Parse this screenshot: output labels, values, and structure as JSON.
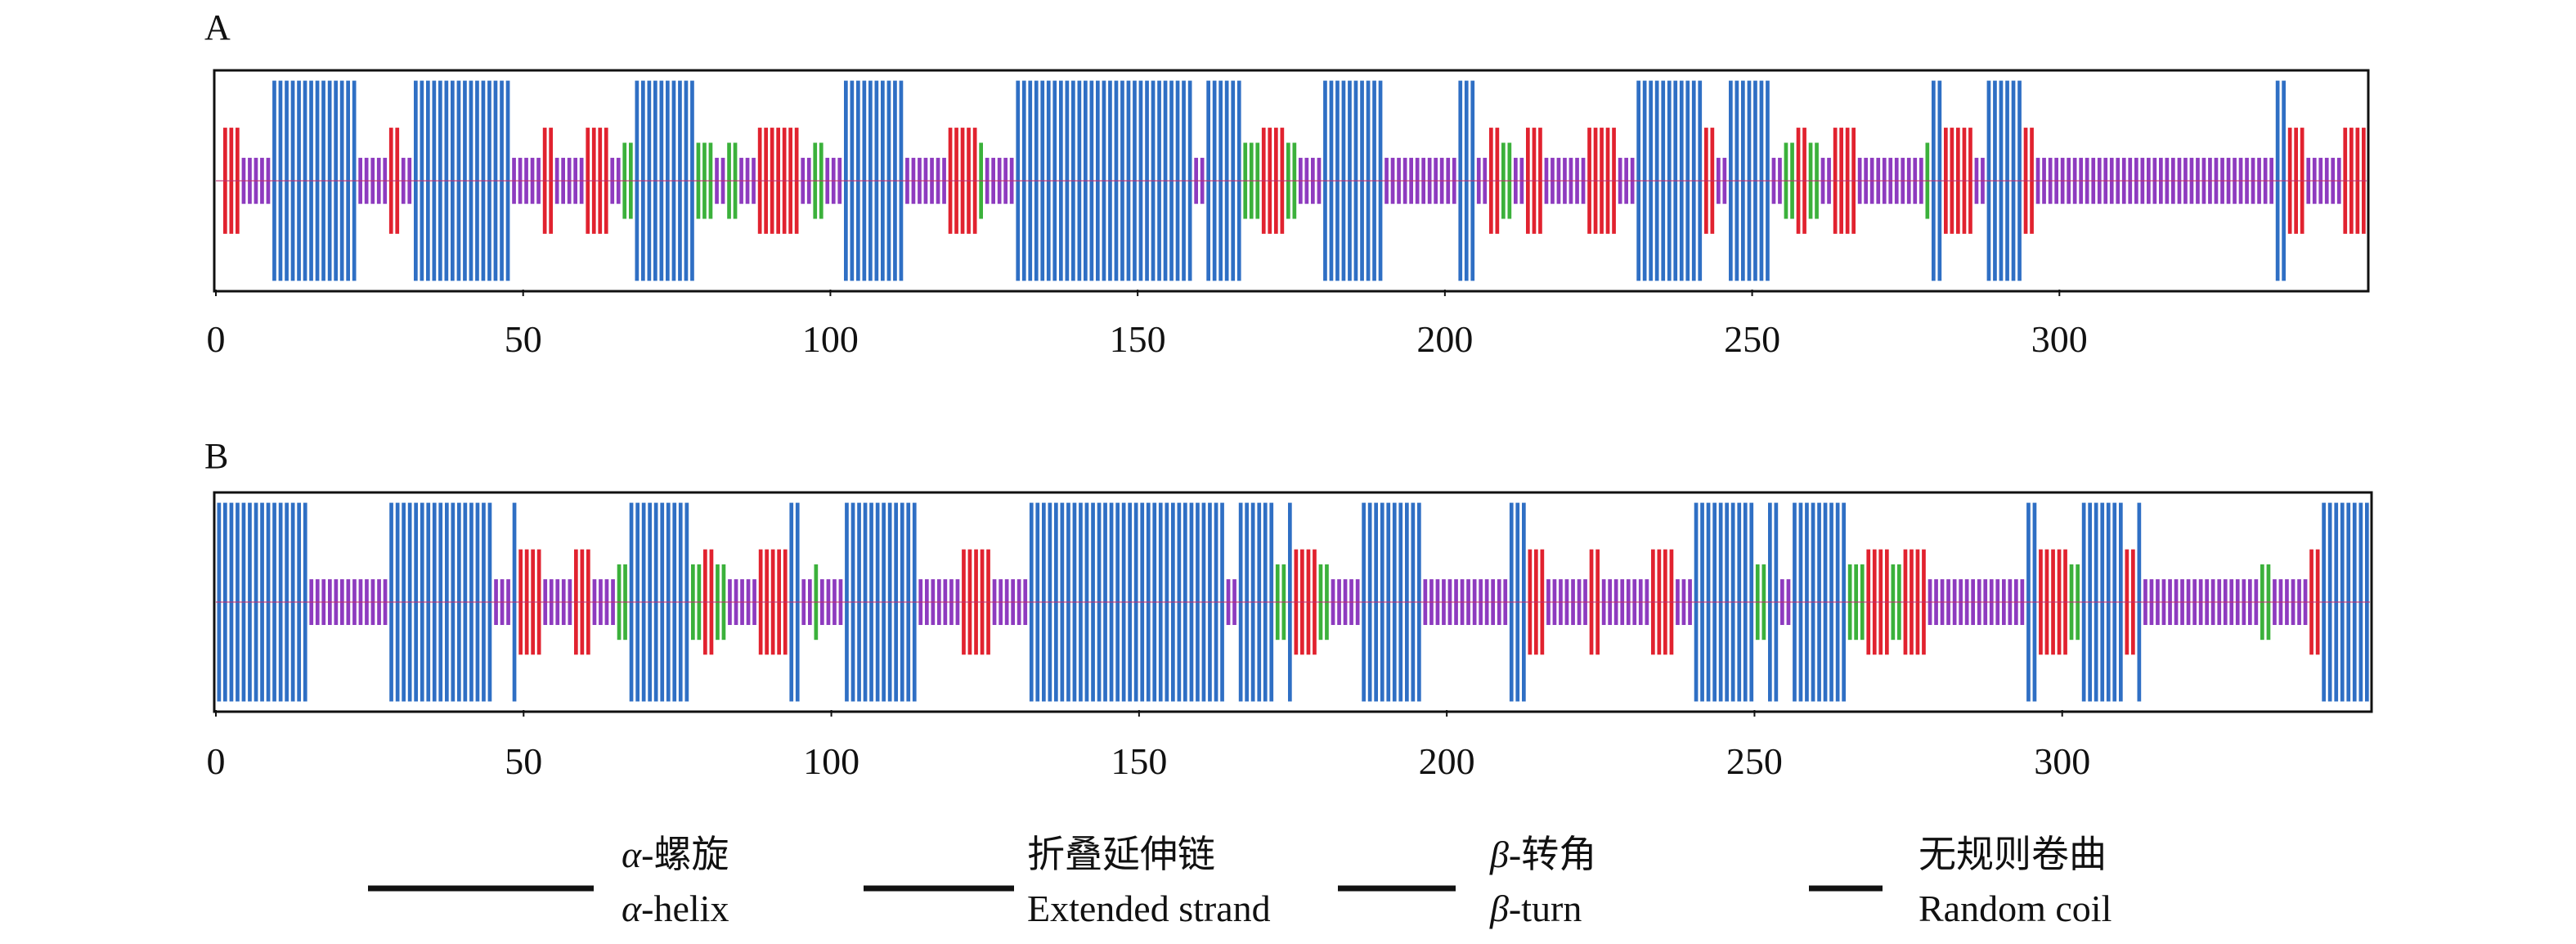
{
  "legend": [
    {
      "key": "helix",
      "zh_symbol": "α",
      "zh_text": "-螺旋",
      "en_symbol": "α",
      "en_text": "-helix",
      "color": "#2f6fc4"
    },
    {
      "key": "strand",
      "zh_symbol": "",
      "zh_text": "折叠延伸链",
      "en_symbol": "",
      "en_text": "Extended strand",
      "color": "#e1222f"
    },
    {
      "key": "turn",
      "zh_symbol": "β",
      "zh_text": "-转角",
      "en_symbol": "β",
      "en_text": "-turn",
      "color": "#3bb13b"
    },
    {
      "key": "coil",
      "zh_symbol": "",
      "zh_text": "无规则卷曲",
      "en_symbol": "",
      "en_text": "Random coil",
      "color": "#8e3bbf"
    }
  ],
  "chart_data": [
    {
      "type": "bar",
      "panel": "A",
      "xlim": [
        0,
        350
      ],
      "xticks": [
        0,
        50,
        100,
        150,
        200,
        250,
        300
      ],
      "xtick_labels": [
        "0",
        "50",
        "100",
        "150",
        "200",
        "250",
        "300"
      ],
      "grid": false,
      "segments": [
        {
          "start": 1,
          "end": 4,
          "type": "strand"
        },
        {
          "start": 4,
          "end": 9,
          "type": "coil"
        },
        {
          "start": 9,
          "end": 23,
          "type": "helix"
        },
        {
          "start": 23,
          "end": 28,
          "type": "coil"
        },
        {
          "start": 28,
          "end": 30,
          "type": "strand"
        },
        {
          "start": 30,
          "end": 32,
          "type": "coil"
        },
        {
          "start": 32,
          "end": 48,
          "type": "helix"
        },
        {
          "start": 48,
          "end": 53,
          "type": "coil"
        },
        {
          "start": 53,
          "end": 55,
          "type": "strand"
        },
        {
          "start": 55,
          "end": 60,
          "type": "coil"
        },
        {
          "start": 60,
          "end": 64,
          "type": "strand"
        },
        {
          "start": 64,
          "end": 66,
          "type": "coil"
        },
        {
          "start": 66,
          "end": 68,
          "type": "turn"
        },
        {
          "start": 68,
          "end": 78,
          "type": "helix"
        },
        {
          "start": 78,
          "end": 81,
          "type": "turn"
        },
        {
          "start": 81,
          "end": 83,
          "type": "coil"
        },
        {
          "start": 83,
          "end": 85,
          "type": "turn"
        },
        {
          "start": 85,
          "end": 88,
          "type": "coil"
        },
        {
          "start": 88,
          "end": 95,
          "type": "strand"
        },
        {
          "start": 95,
          "end": 97,
          "type": "coil"
        },
        {
          "start": 97,
          "end": 99,
          "type": "turn"
        },
        {
          "start": 99,
          "end": 102,
          "type": "coil"
        },
        {
          "start": 102,
          "end": 112,
          "type": "helix"
        },
        {
          "start": 112,
          "end": 119,
          "type": "coil"
        },
        {
          "start": 119,
          "end": 124,
          "type": "strand"
        },
        {
          "start": 124,
          "end": 125,
          "type": "turn"
        },
        {
          "start": 125,
          "end": 130,
          "type": "coil"
        },
        {
          "start": 130,
          "end": 159,
          "type": "helix"
        },
        {
          "start": 159,
          "end": 161,
          "type": "coil"
        },
        {
          "start": 161,
          "end": 167,
          "type": "helix"
        },
        {
          "start": 167,
          "end": 170,
          "type": "turn"
        },
        {
          "start": 170,
          "end": 174,
          "type": "strand"
        },
        {
          "start": 174,
          "end": 176,
          "type": "turn"
        },
        {
          "start": 176,
          "end": 180,
          "type": "coil"
        },
        {
          "start": 180,
          "end": 190,
          "type": "helix"
        },
        {
          "start": 190,
          "end": 202,
          "type": "coil"
        },
        {
          "start": 202,
          "end": 205,
          "type": "helix"
        },
        {
          "start": 205,
          "end": 207,
          "type": "coil"
        },
        {
          "start": 207,
          "end": 209,
          "type": "strand"
        },
        {
          "start": 209,
          "end": 211,
          "type": "turn"
        },
        {
          "start": 211,
          "end": 213,
          "type": "coil"
        },
        {
          "start": 213,
          "end": 216,
          "type": "strand"
        },
        {
          "start": 216,
          "end": 223,
          "type": "coil"
        },
        {
          "start": 223,
          "end": 228,
          "type": "strand"
        },
        {
          "start": 228,
          "end": 231,
          "type": "coil"
        },
        {
          "start": 231,
          "end": 242,
          "type": "helix"
        },
        {
          "start": 242,
          "end": 244,
          "type": "strand"
        },
        {
          "start": 244,
          "end": 246,
          "type": "coil"
        },
        {
          "start": 246,
          "end": 253,
          "type": "helix"
        },
        {
          "start": 253,
          "end": 255,
          "type": "coil"
        },
        {
          "start": 255,
          "end": 257,
          "type": "turn"
        },
        {
          "start": 257,
          "end": 259,
          "type": "strand"
        },
        {
          "start": 259,
          "end": 261,
          "type": "turn"
        },
        {
          "start": 261,
          "end": 263,
          "type": "coil"
        },
        {
          "start": 263,
          "end": 267,
          "type": "strand"
        },
        {
          "start": 267,
          "end": 278,
          "type": "coil"
        },
        {
          "start": 278,
          "end": 279,
          "type": "turn"
        },
        {
          "start": 279,
          "end": 281,
          "type": "helix"
        },
        {
          "start": 281,
          "end": 286,
          "type": "strand"
        },
        {
          "start": 286,
          "end": 288,
          "type": "coil"
        },
        {
          "start": 288,
          "end": 294,
          "type": "helix"
        },
        {
          "start": 294,
          "end": 296,
          "type": "strand"
        },
        {
          "start": 296,
          "end": 335,
          "type": "coil"
        },
        {
          "start": 335,
          "end": 337,
          "type": "helix"
        },
        {
          "start": 337,
          "end": 340,
          "type": "strand"
        },
        {
          "start": 340,
          "end": 346,
          "type": "coil"
        },
        {
          "start": 346,
          "end": 350,
          "type": "strand"
        }
      ]
    },
    {
      "type": "bar",
      "panel": "B",
      "xlim": [
        0,
        350
      ],
      "xticks": [
        0,
        50,
        100,
        150,
        200,
        250,
        300
      ],
      "xtick_labels": [
        "0",
        "50",
        "100",
        "150",
        "200",
        "250",
        "300"
      ],
      "grid": false,
      "segments": [
        {
          "start": 0,
          "end": 15,
          "type": "helix"
        },
        {
          "start": 15,
          "end": 28,
          "type": "coil"
        },
        {
          "start": 28,
          "end": 45,
          "type": "helix"
        },
        {
          "start": 45,
          "end": 48,
          "type": "coil"
        },
        {
          "start": 48,
          "end": 49,
          "type": "helix"
        },
        {
          "start": 49,
          "end": 53,
          "type": "strand"
        },
        {
          "start": 53,
          "end": 58,
          "type": "coil"
        },
        {
          "start": 58,
          "end": 61,
          "type": "strand"
        },
        {
          "start": 61,
          "end": 65,
          "type": "coil"
        },
        {
          "start": 65,
          "end": 67,
          "type": "turn"
        },
        {
          "start": 67,
          "end": 77,
          "type": "helix"
        },
        {
          "start": 77,
          "end": 79,
          "type": "turn"
        },
        {
          "start": 79,
          "end": 81,
          "type": "strand"
        },
        {
          "start": 81,
          "end": 83,
          "type": "turn"
        },
        {
          "start": 83,
          "end": 88,
          "type": "coil"
        },
        {
          "start": 88,
          "end": 93,
          "type": "strand"
        },
        {
          "start": 93,
          "end": 95,
          "type": "helix"
        },
        {
          "start": 95,
          "end": 97,
          "type": "coil"
        },
        {
          "start": 97,
          "end": 98,
          "type": "turn"
        },
        {
          "start": 98,
          "end": 102,
          "type": "coil"
        },
        {
          "start": 102,
          "end": 114,
          "type": "helix"
        },
        {
          "start": 114,
          "end": 121,
          "type": "coil"
        },
        {
          "start": 121,
          "end": 126,
          "type": "strand"
        },
        {
          "start": 126,
          "end": 132,
          "type": "coil"
        },
        {
          "start": 132,
          "end": 164,
          "type": "helix"
        },
        {
          "start": 164,
          "end": 166,
          "type": "coil"
        },
        {
          "start": 166,
          "end": 172,
          "type": "helix"
        },
        {
          "start": 172,
          "end": 174,
          "type": "turn"
        },
        {
          "start": 174,
          "end": 175,
          "type": "helix"
        },
        {
          "start": 175,
          "end": 179,
          "type": "strand"
        },
        {
          "start": 179,
          "end": 181,
          "type": "turn"
        },
        {
          "start": 181,
          "end": 186,
          "type": "coil"
        },
        {
          "start": 186,
          "end": 196,
          "type": "helix"
        },
        {
          "start": 196,
          "end": 210,
          "type": "coil"
        },
        {
          "start": 210,
          "end": 213,
          "type": "helix"
        },
        {
          "start": 213,
          "end": 216,
          "type": "strand"
        },
        {
          "start": 216,
          "end": 223,
          "type": "coil"
        },
        {
          "start": 223,
          "end": 225,
          "type": "strand"
        },
        {
          "start": 225,
          "end": 233,
          "type": "coil"
        },
        {
          "start": 233,
          "end": 237,
          "type": "strand"
        },
        {
          "start": 237,
          "end": 240,
          "type": "coil"
        },
        {
          "start": 240,
          "end": 250,
          "type": "helix"
        },
        {
          "start": 250,
          "end": 252,
          "type": "turn"
        },
        {
          "start": 252,
          "end": 254,
          "type": "helix"
        },
        {
          "start": 254,
          "end": 256,
          "type": "coil"
        },
        {
          "start": 256,
          "end": 265,
          "type": "helix"
        },
        {
          "start": 265,
          "end": 268,
          "type": "turn"
        },
        {
          "start": 268,
          "end": 272,
          "type": "strand"
        },
        {
          "start": 272,
          "end": 274,
          "type": "turn"
        },
        {
          "start": 274,
          "end": 278,
          "type": "strand"
        },
        {
          "start": 278,
          "end": 294,
          "type": "coil"
        },
        {
          "start": 294,
          "end": 296,
          "type": "helix"
        },
        {
          "start": 296,
          "end": 301,
          "type": "strand"
        },
        {
          "start": 301,
          "end": 303,
          "type": "turn"
        },
        {
          "start": 303,
          "end": 310,
          "type": "helix"
        },
        {
          "start": 310,
          "end": 312,
          "type": "strand"
        },
        {
          "start": 312,
          "end": 313,
          "type": "helix"
        },
        {
          "start": 313,
          "end": 332,
          "type": "coil"
        },
        {
          "start": 332,
          "end": 334,
          "type": "turn"
        },
        {
          "start": 334,
          "end": 340,
          "type": "coil"
        },
        {
          "start": 340,
          "end": 342,
          "type": "strand"
        },
        {
          "start": 342,
          "end": 350,
          "type": "helix"
        }
      ]
    }
  ],
  "panels": [
    {
      "label": "A"
    },
    {
      "label": "B"
    }
  ]
}
